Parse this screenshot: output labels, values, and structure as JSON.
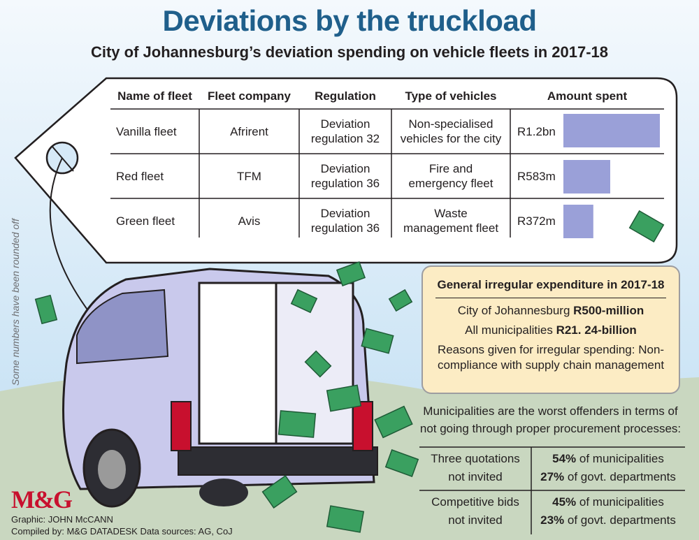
{
  "title": "Deviations by the truckload",
  "subtitle": "City of Johannesburg’s deviation spending on vehicle fleets in 2017-18",
  "side_note": "Some numbers have been rounded off",
  "table": {
    "headers": [
      "Name of fleet",
      "Fleet company",
      "Regulation",
      "Type of vehicles",
      "Amount spent"
    ],
    "rows": [
      {
        "fleet": "Vanilla fleet",
        "company": "Afrirent",
        "regulation": "Deviation regulation 32",
        "vehicles": "Non-specialised vehicles for the city",
        "amount": "R1.2bn"
      },
      {
        "fleet": "Red fleet",
        "company": "TFM",
        "regulation": "Deviation regulation 36",
        "vehicles": "Fire and emergency fleet",
        "amount": "R583m"
      },
      {
        "fleet": "Green fleet",
        "company": "Avis",
        "regulation": "Deviation regulation 36",
        "vehicles": "Waste management fleet",
        "amount": "R372m"
      }
    ]
  },
  "chart_data": {
    "type": "bar",
    "categories": [
      "Vanilla fleet",
      "Red fleet",
      "Green fleet"
    ],
    "values": [
      1200,
      583,
      372
    ],
    "value_labels": [
      "R1.2bn",
      "R583m",
      "R372m"
    ],
    "ylabel": "Amount spent",
    "bar_color": "#9aa0d8"
  },
  "irregular": {
    "heading": "General irregular expenditure in 2017-18",
    "coj_label": "City of Johannesburg ",
    "coj_value": "R500-million",
    "all_label": "All municipalities ",
    "all_value": "R21. 24-billion",
    "reasons_1": "Reasons given for irregular spending: Non-",
    "reasons_2": "compliance with supply chain management"
  },
  "municipal": {
    "intro_1": "Municipalities are the worst offenders in terms of",
    "intro_2": "not going through proper procurement processes:",
    "rows": [
      {
        "label_1": "Three quotations",
        "label_2": "not invited",
        "muni_pct": "54%",
        "muni_text": " of municipalities",
        "govt_pct": "27%",
        "govt_text": " of govt. departments"
      },
      {
        "label_1": "Competitive bids",
        "label_2": "not invited",
        "muni_pct": "45%",
        "muni_text": " of municipalities",
        "govt_pct": "23%",
        "govt_text": " of govt. departments"
      }
    ]
  },
  "logo": "M&G",
  "credit_graphic": "Graphic: JOHN McCANN",
  "credit_compiled": "Compiled by: M&G DATADESK  Data sources: AG, CoJ",
  "colors": {
    "title": "#1f5f8b",
    "sky": "#d6e9f7",
    "ground": "#c9d7c0",
    "tag_border": "#231f20",
    "money": "#3aa060",
    "box": "#fcecc4"
  }
}
